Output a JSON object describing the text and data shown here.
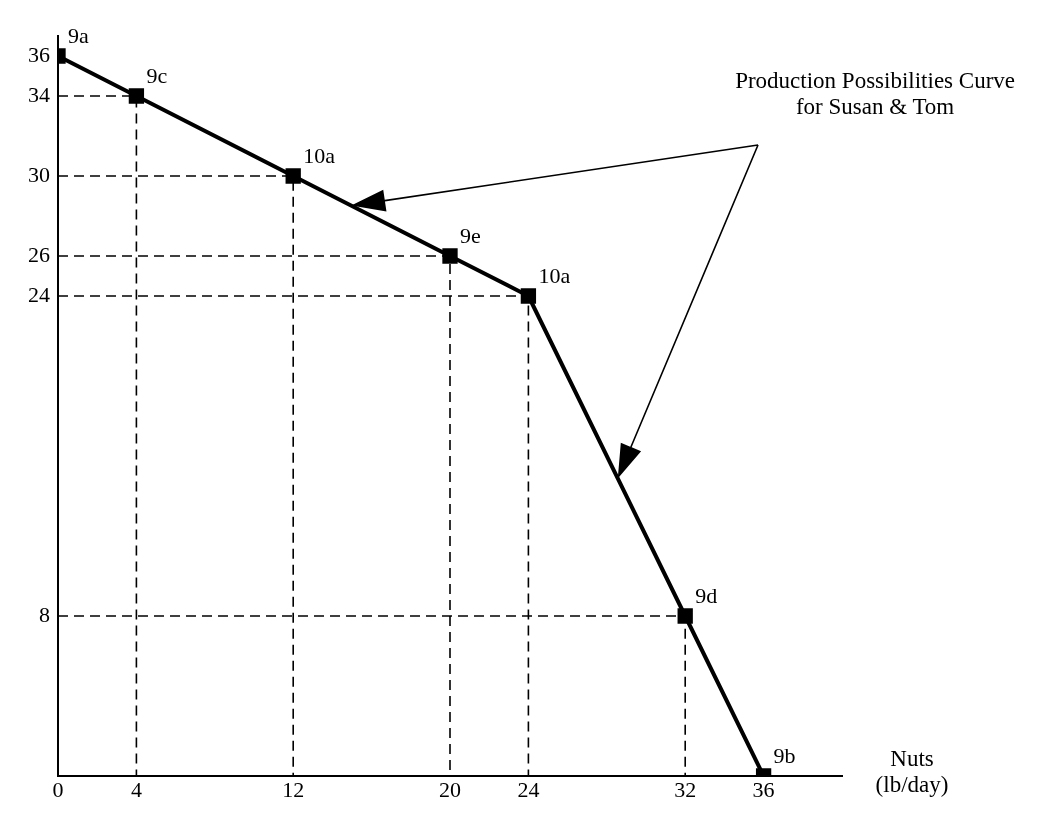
{
  "chart_data": {
    "type": "line",
    "xlabel": "Nuts (lb/day)",
    "annotations": [
      "Production Possibilities Curve\nfor Susan & Tom",
      {
        "text": "9a",
        "x": 0,
        "y": 36
      },
      {
        "text": "9c",
        "x": 4,
        "y": 34
      },
      {
        "text": "10a",
        "x": 12,
        "y": 30
      },
      {
        "text": "9e",
        "x": 20,
        "y": 26
      },
      {
        "text": "10a",
        "x": 24,
        "y": 24
      },
      {
        "text": "9d",
        "x": 32,
        "y": 8
      },
      {
        "text": "9b",
        "x": 36,
        "y": 0
      }
    ],
    "series": [
      {
        "color": "#000000",
        "x": [
          0,
          4,
          12,
          20,
          24,
          32,
          36
        ],
        "values": [
          36,
          34,
          30,
          26,
          24,
          8,
          0
        ],
        "marker": "square",
        "line_style": "solid"
      },
      {
        "color": "#000000",
        "x": [
          0,
          4,
          4
        ],
        "values": [
          34,
          34,
          0
        ],
        "marker": "none",
        "line_style": "dashed"
      },
      {
        "color": "#000000",
        "x": [
          0,
          12,
          12
        ],
        "values": [
          30,
          30,
          0
        ],
        "marker": "none",
        "line_style": "dashed"
      },
      {
        "color": "#000000",
        "x": [
          0,
          20,
          20
        ],
        "values": [
          26,
          26,
          0
        ],
        "marker": "none",
        "line_style": "dashed"
      },
      {
        "color": "#000000",
        "x": [
          0,
          24,
          24
        ],
        "values": [
          24,
          24,
          0
        ],
        "marker": "none",
        "line_style": "dashed"
      },
      {
        "color": "#000000",
        "x": [
          0,
          32,
          32
        ],
        "values": [
          8,
          8,
          0
        ],
        "marker": "none",
        "line_style": "dashed"
      }
    ],
    "xlim": [
      0,
      40
    ],
    "xticks": [
      0,
      4,
      12,
      20,
      24,
      32,
      36
    ],
    "ylim": [
      0,
      37
    ],
    "yticks": [
      8,
      24,
      26,
      30,
      34,
      36
    ],
    "grid": false,
    "legend": false
  }
}
